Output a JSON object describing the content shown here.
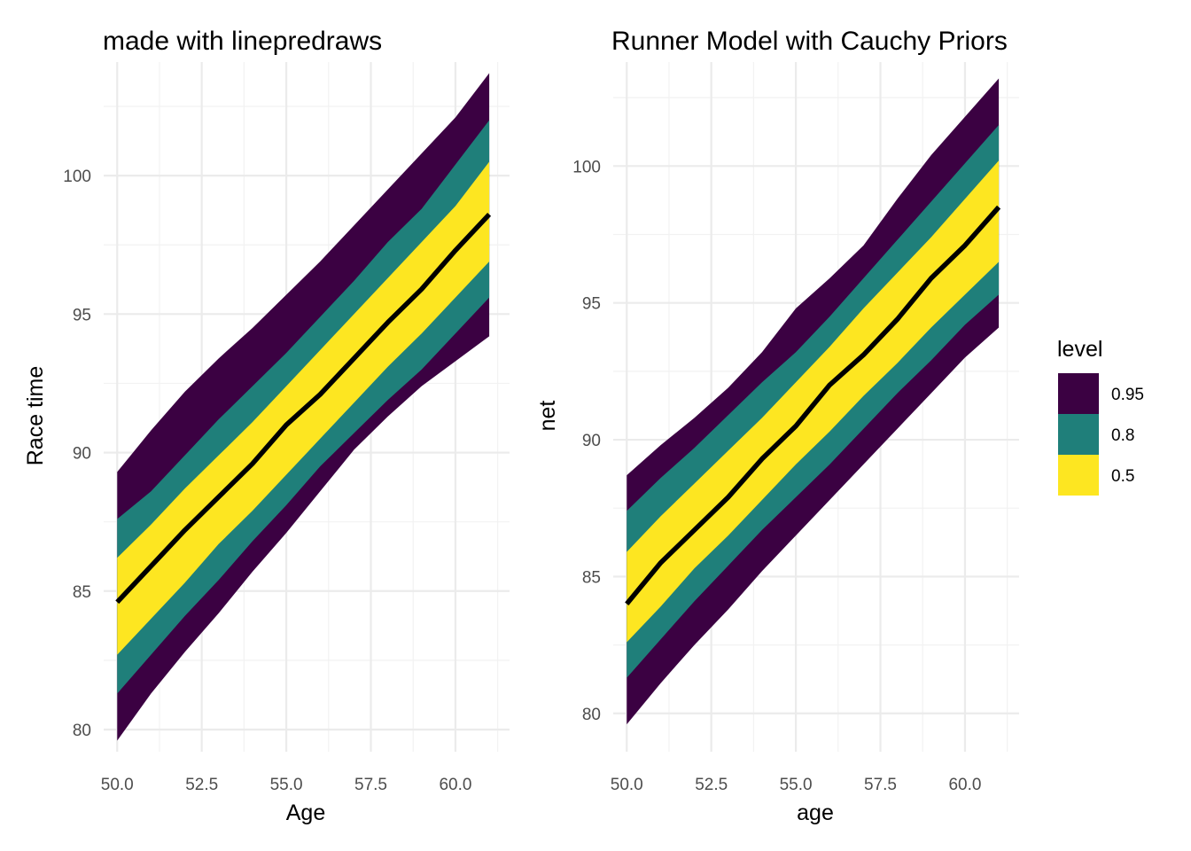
{
  "colors": {
    "level_0_95": "#3b0142",
    "level_0_8": "#1f7f7a",
    "level_0_5": "#fde621",
    "line": "#000000",
    "grid_major": "#ebebeb",
    "grid_minor": "#f2f2f2"
  },
  "legend": {
    "title": "level",
    "items": [
      {
        "label": "0.95",
        "color": "#3b0142"
      },
      {
        "label": "0.8",
        "color": "#1f7f7a"
      },
      {
        "label": "0.5",
        "color": "#fde621"
      }
    ]
  },
  "chart_data": [
    {
      "type": "area",
      "title": "made with linepredraws",
      "xlabel": "Age",
      "ylabel": "Race time",
      "xlim": [
        49.6,
        61.6
      ],
      "ylim": [
        79.2,
        104.1
      ],
      "x_ticks": [
        {
          "value": 50,
          "label": "50.0"
        },
        {
          "value": 52.5,
          "label": "52.5"
        },
        {
          "value": 55,
          "label": "55.0"
        },
        {
          "value": 57.5,
          "label": "57.5"
        },
        {
          "value": 60,
          "label": "60.0"
        }
      ],
      "y_ticks": [
        {
          "value": 80,
          "label": "80"
        },
        {
          "value": 85,
          "label": "85"
        },
        {
          "value": 90,
          "label": "90"
        },
        {
          "value": 95,
          "label": "95"
        },
        {
          "value": 100,
          "label": "100"
        }
      ],
      "grid": true,
      "x": [
        50,
        51,
        52,
        53,
        54,
        55,
        56,
        57,
        58,
        59,
        60,
        61
      ],
      "median": [
        84.6,
        85.9,
        87.2,
        88.4,
        89.6,
        91.0,
        92.1,
        93.4,
        94.7,
        95.9,
        97.3,
        98.6
      ],
      "bands": [
        {
          "level": "0.95",
          "upper": [
            89.3,
            90.8,
            92.2,
            93.4,
            94.5,
            95.7,
            96.9,
            98.2,
            99.5,
            100.8,
            102.1,
            103.7
          ],
          "lower": [
            79.6,
            81.3,
            82.8,
            84.2,
            85.7,
            87.1,
            88.6,
            90.1,
            91.3,
            92.4,
            93.3,
            94.2
          ]
        },
        {
          "level": "0.8",
          "upper": [
            87.6,
            88.6,
            89.9,
            91.2,
            92.4,
            93.6,
            94.9,
            96.2,
            97.6,
            98.8,
            100.4,
            102.0
          ]
        },
        {
          "level": "0.5",
          "upper": [
            86.2,
            87.4,
            88.7,
            89.9,
            91.1,
            92.4,
            93.7,
            95.0,
            96.3,
            97.6,
            98.9,
            100.5
          ],
          "lower": [
            82.7,
            84.0,
            85.3,
            86.7,
            87.9,
            89.2,
            90.5,
            91.8,
            93.1,
            94.3,
            95.6,
            96.9
          ]
        }
      ],
      "bands_80_lower": [
        81.3,
        82.7,
        84.1,
        85.4,
        86.8,
        88.1,
        89.5,
        90.7,
        91.9,
        93.0,
        94.3,
        95.6
      ]
    },
    {
      "type": "area",
      "title": "Runner Model with Cauchy Priors",
      "xlabel": "age",
      "ylabel": "net",
      "xlim": [
        49.6,
        61.6
      ],
      "ylim": [
        78.6,
        103.8
      ],
      "x_ticks": [
        {
          "value": 50,
          "label": "50.0"
        },
        {
          "value": 52.5,
          "label": "52.5"
        },
        {
          "value": 55,
          "label": "55.0"
        },
        {
          "value": 57.5,
          "label": "57.5"
        },
        {
          "value": 60,
          "label": "60.0"
        }
      ],
      "y_ticks": [
        {
          "value": 80,
          "label": "80"
        },
        {
          "value": 85,
          "label": "85"
        },
        {
          "value": 90,
          "label": "90"
        },
        {
          "value": 95,
          "label": "95"
        },
        {
          "value": 100,
          "label": "100"
        }
      ],
      "grid": true,
      "x": [
        50,
        51,
        52,
        53,
        54,
        55,
        56,
        57,
        58,
        59,
        60,
        61
      ],
      "median": [
        84.0,
        85.5,
        86.7,
        87.9,
        89.3,
        90.5,
        92.0,
        93.1,
        94.4,
        95.9,
        97.1,
        98.5
      ],
      "bands": [
        {
          "level": "0.95",
          "upper": [
            88.7,
            89.8,
            90.8,
            91.9,
            93.2,
            94.8,
            95.9,
            97.1,
            98.8,
            100.4,
            101.8,
            103.2
          ],
          "lower": [
            79.6,
            81.1,
            82.5,
            83.8,
            85.2,
            86.5,
            87.8,
            89.1,
            90.4,
            91.7,
            93.0,
            94.1
          ]
        },
        {
          "level": "0.8",
          "upper": [
            87.4,
            88.6,
            89.7,
            90.9,
            92.1,
            93.2,
            94.5,
            95.9,
            97.3,
            98.7,
            100.1,
            101.5
          ],
          "lower": [
            81.3,
            82.7,
            84.1,
            85.4,
            86.7,
            87.9,
            89.1,
            90.4,
            91.7,
            92.9,
            94.2,
            95.3
          ]
        },
        {
          "level": "0.5",
          "upper": [
            85.9,
            87.2,
            88.4,
            89.6,
            90.8,
            92.1,
            93.4,
            94.8,
            96.1,
            97.4,
            98.8,
            100.2
          ],
          "lower": [
            82.6,
            83.9,
            85.3,
            86.5,
            87.8,
            89.1,
            90.3,
            91.6,
            92.8,
            94.1,
            95.3,
            96.5
          ]
        }
      ]
    }
  ]
}
